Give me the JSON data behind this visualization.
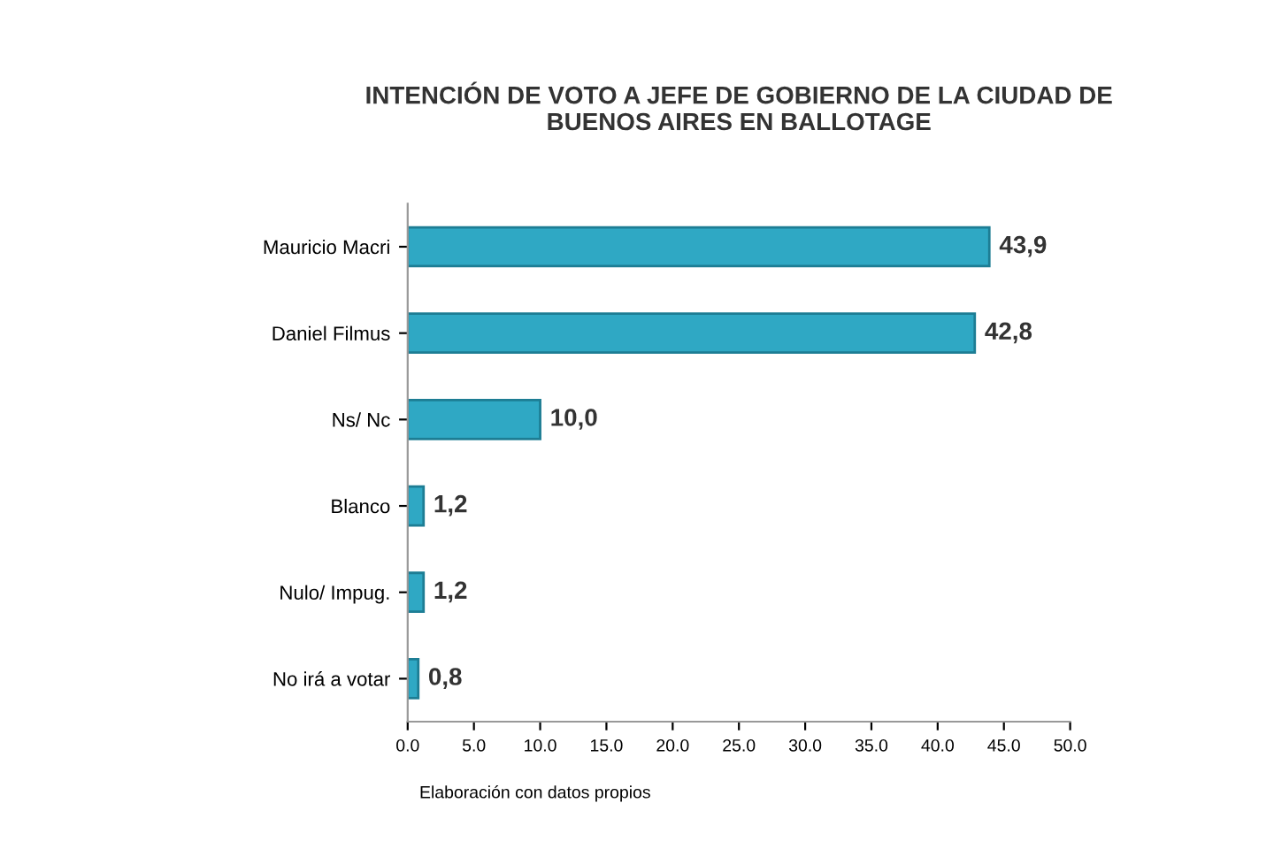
{
  "chart_data": {
    "type": "bar",
    "orientation": "horizontal",
    "title": "INTENCIÓN DE VOTO A JEFE DE GOBIERNO DE LA CIUDAD DE\nBUENOS AIRES EN BALLOTAGE",
    "categories": [
      "Mauricio Macri",
      "Daniel Filmus",
      "Ns/ Nc",
      "Blanco",
      "Nulo/ Impug.",
      "No irá a votar"
    ],
    "values": [
      43.9,
      42.8,
      10.0,
      1.2,
      1.2,
      0.8
    ],
    "value_labels": [
      "43,9",
      "42,8",
      "10,0",
      "1,2",
      "1,2",
      "0,8"
    ],
    "color": "#2fa8c4",
    "xlim": [
      0,
      50
    ],
    "xticks": [
      {
        "value": 0,
        "label": "0.0"
      },
      {
        "value": 5,
        "label": "5.0"
      },
      {
        "value": 10,
        "label": "10.0"
      },
      {
        "value": 15,
        "label": "15.0"
      },
      {
        "value": 20,
        "label": "20.0"
      },
      {
        "value": 25,
        "label": "25.0"
      },
      {
        "value": 30,
        "label": "30.0"
      },
      {
        "value": 35,
        "label": "35.0"
      },
      {
        "value": 40,
        "label": "40.0"
      },
      {
        "value": 45,
        "label": "45.0"
      },
      {
        "value": 50,
        "label": "50.0"
      }
    ],
    "grid": false,
    "annotations": [
      "Elaboración con datos propios"
    ]
  }
}
